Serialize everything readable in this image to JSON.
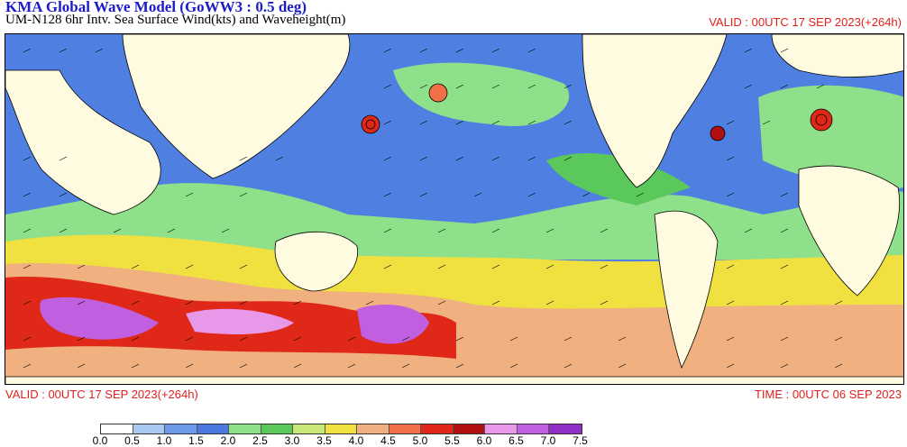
{
  "header": {
    "title": "KMA  Global Wave Model (GoWW3 : 0.5 deg)",
    "subtitle": "UM-N128  6hr Intv. Sea Surface Wind(kts) and Waveheight(m)",
    "valid_top": "VALID : 00UTC 17 SEP 2023(+264h)"
  },
  "footer": {
    "valid": "VALID : 00UTC 17 SEP 2023(+264h)",
    "time": "TIME : 00UTC 06 SEP 2023"
  },
  "colorbar": {
    "ticks": [
      "0.0",
      "0.5",
      "1.0",
      "1.5",
      "2.0",
      "2.5",
      "3.0",
      "3.5",
      "4.0",
      "4.5",
      "5.0",
      "5.5",
      "6.0",
      "6.5",
      "7.0",
      "7.5"
    ],
    "colors": [
      "#ffffff",
      "#a8c8f0",
      "#6a9ae8",
      "#4a78e0",
      "#8ee08a",
      "#5ac85a",
      "#c8e878",
      "#f0e040",
      "#f0b080",
      "#f07048",
      "#e02818",
      "#b01010",
      "#e898e8",
      "#c060e0",
      "#9030c8"
    ]
  },
  "map": {
    "land_color": "#fffbe0",
    "ocean_base": "#5080e0"
  }
}
